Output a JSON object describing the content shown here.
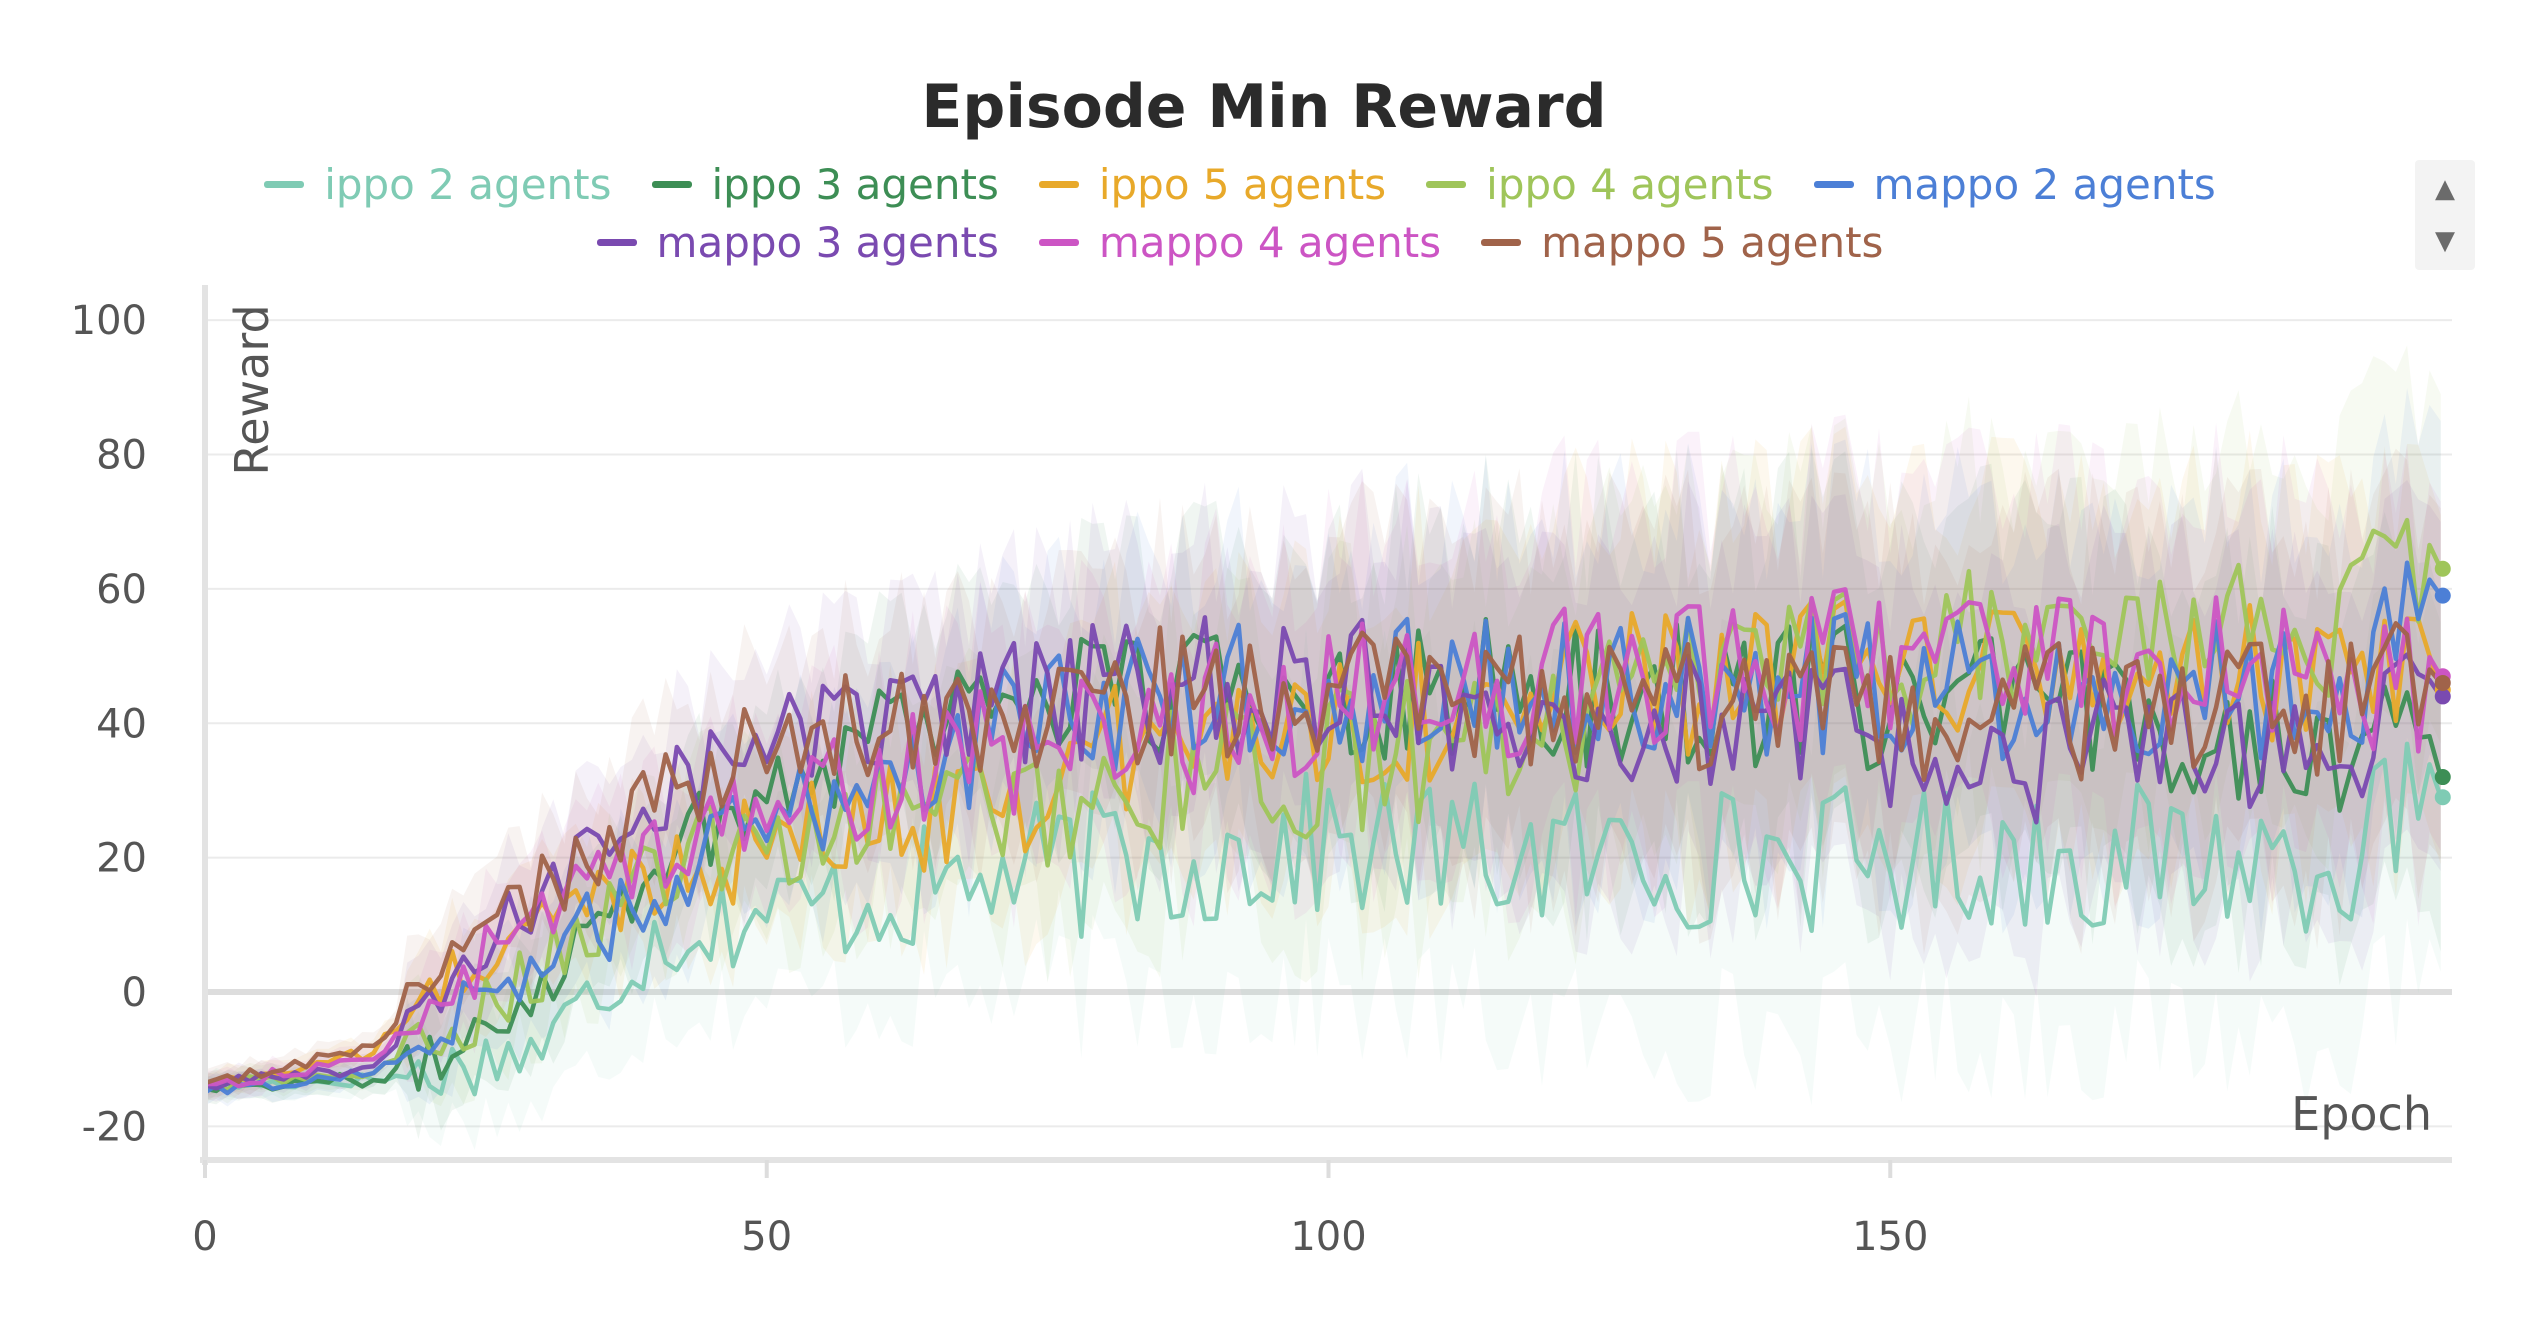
{
  "chart_data": {
    "type": "line",
    "title": "Episode Min Reward",
    "xlabel": "Epoch",
    "ylabel": "Reward",
    "xlim": [
      0,
      200
    ],
    "ylim": [
      -25,
      103
    ],
    "x_ticks": [
      0,
      50,
      100,
      150
    ],
    "y_ticks": [
      -20,
      0,
      20,
      40,
      60,
      80,
      100
    ],
    "grid": true,
    "legend_position": "top",
    "shaded_band_around_each_line": true,
    "x_last": 199,
    "series": [
      {
        "name": "ippo 2 agents",
        "color": "#7fcbb4",
        "end_value": 29,
        "anchors": [
          [
            0,
            -14
          ],
          [
            15,
            -13
          ],
          [
            20,
            -12
          ],
          [
            30,
            -8
          ],
          [
            40,
            8
          ],
          [
            50,
            12
          ],
          [
            60,
            14
          ],
          [
            70,
            17
          ],
          [
            80,
            19
          ],
          [
            90,
            20
          ],
          [
            100,
            22
          ],
          [
            110,
            21
          ],
          [
            120,
            20
          ],
          [
            130,
            20
          ],
          [
            140,
            20
          ],
          [
            150,
            20
          ],
          [
            160,
            20
          ],
          [
            170,
            20
          ],
          [
            180,
            20
          ],
          [
            190,
            20
          ],
          [
            199,
            29
          ]
        ]
      },
      {
        "name": "ippo 3 agents",
        "color": "#3d8e55",
        "end_value": 32,
        "anchors": [
          [
            0,
            -14
          ],
          [
            15,
            -13
          ],
          [
            20,
            -11
          ],
          [
            30,
            2
          ],
          [
            40,
            20
          ],
          [
            50,
            30
          ],
          [
            60,
            40
          ],
          [
            70,
            45
          ],
          [
            80,
            45
          ],
          [
            90,
            44
          ],
          [
            100,
            46
          ],
          [
            110,
            45
          ],
          [
            120,
            44
          ],
          [
            130,
            45
          ],
          [
            140,
            44
          ],
          [
            150,
            44
          ],
          [
            160,
            42
          ],
          [
            170,
            40
          ],
          [
            180,
            40
          ],
          [
            190,
            38
          ],
          [
            199,
            32
          ]
        ]
      },
      {
        "name": "ippo 5 agents",
        "color": "#e8a92a",
        "end_value": 45,
        "anchors": [
          [
            0,
            -14
          ],
          [
            15,
            -9
          ],
          [
            20,
            0
          ],
          [
            30,
            10
          ],
          [
            40,
            18
          ],
          [
            50,
            22
          ],
          [
            60,
            25
          ],
          [
            70,
            30
          ],
          [
            80,
            35
          ],
          [
            90,
            38
          ],
          [
            100,
            41
          ],
          [
            110,
            42
          ],
          [
            120,
            44
          ],
          [
            130,
            46
          ],
          [
            140,
            47
          ],
          [
            150,
            48
          ],
          [
            160,
            48
          ],
          [
            170,
            47
          ],
          [
            180,
            47
          ],
          [
            190,
            46
          ],
          [
            199,
            45
          ]
        ]
      },
      {
        "name": "ippo 4 agents",
        "color": "#9fc55a",
        "end_value": 63,
        "anchors": [
          [
            0,
            -14
          ],
          [
            15,
            -12
          ],
          [
            20,
            -8
          ],
          [
            30,
            4
          ],
          [
            40,
            18
          ],
          [
            50,
            23
          ],
          [
            60,
            26
          ],
          [
            70,
            28
          ],
          [
            80,
            30
          ],
          [
            90,
            32
          ],
          [
            100,
            34
          ],
          [
            110,
            36
          ],
          [
            120,
            40
          ],
          [
            130,
            44
          ],
          [
            140,
            47
          ],
          [
            150,
            50
          ],
          [
            160,
            53
          ],
          [
            170,
            52
          ],
          [
            180,
            54
          ],
          [
            190,
            55
          ],
          [
            199,
            63
          ]
        ]
      },
      {
        "name": "mappo 2 agents",
        "color": "#4c7fd6",
        "end_value": 59,
        "anchors": [
          [
            0,
            -15
          ],
          [
            15,
            -12
          ],
          [
            20,
            -6
          ],
          [
            30,
            5
          ],
          [
            40,
            15
          ],
          [
            50,
            25
          ],
          [
            60,
            33
          ],
          [
            70,
            38
          ],
          [
            80,
            42
          ],
          [
            90,
            44
          ],
          [
            100,
            45
          ],
          [
            110,
            46
          ],
          [
            120,
            46
          ],
          [
            130,
            45
          ],
          [
            140,
            45
          ],
          [
            150,
            46
          ],
          [
            160,
            45
          ],
          [
            170,
            46
          ],
          [
            180,
            46
          ],
          [
            190,
            45
          ],
          [
            199,
            59
          ]
        ]
      },
      {
        "name": "mappo 3 agents",
        "color": "#7a4ab0",
        "end_value": 44,
        "anchors": [
          [
            0,
            -14
          ],
          [
            15,
            -11
          ],
          [
            20,
            -3
          ],
          [
            30,
            15
          ],
          [
            40,
            30
          ],
          [
            50,
            37
          ],
          [
            60,
            40
          ],
          [
            70,
            42
          ],
          [
            80,
            44
          ],
          [
            90,
            45
          ],
          [
            100,
            45
          ],
          [
            110,
            44
          ],
          [
            120,
            42
          ],
          [
            130,
            40
          ],
          [
            140,
            38
          ],
          [
            150,
            37
          ],
          [
            160,
            36
          ],
          [
            170,
            36
          ],
          [
            180,
            35
          ],
          [
            190,
            35
          ],
          [
            199,
            44
          ]
        ]
      },
      {
        "name": "mappo 4 agents",
        "color": "#cc55c4",
        "end_value": 47,
        "anchors": [
          [
            0,
            -14
          ],
          [
            15,
            -10
          ],
          [
            20,
            -2
          ],
          [
            30,
            12
          ],
          [
            40,
            22
          ],
          [
            50,
            27
          ],
          [
            60,
            31
          ],
          [
            70,
            35
          ],
          [
            80,
            38
          ],
          [
            90,
            41
          ],
          [
            100,
            44
          ],
          [
            110,
            46
          ],
          [
            120,
            46
          ],
          [
            130,
            47
          ],
          [
            140,
            48
          ],
          [
            150,
            50
          ],
          [
            160,
            50
          ],
          [
            170,
            49
          ],
          [
            180,
            48
          ],
          [
            190,
            46
          ],
          [
            199,
            47
          ]
        ]
      },
      {
        "name": "mappo 5 agents",
        "color": "#a0634a",
        "end_value": 46,
        "anchors": [
          [
            0,
            -14
          ],
          [
            15,
            -8
          ],
          [
            20,
            2
          ],
          [
            30,
            15
          ],
          [
            40,
            28
          ],
          [
            50,
            36
          ],
          [
            60,
            40
          ],
          [
            70,
            42
          ],
          [
            80,
            43
          ],
          [
            90,
            44
          ],
          [
            100,
            44
          ],
          [
            110,
            43
          ],
          [
            120,
            43
          ],
          [
            130,
            42
          ],
          [
            140,
            41
          ],
          [
            150,
            40
          ],
          [
            160,
            41
          ],
          [
            170,
            42
          ],
          [
            180,
            42
          ],
          [
            190,
            42
          ],
          [
            199,
            46
          ]
        ]
      }
    ]
  }
}
